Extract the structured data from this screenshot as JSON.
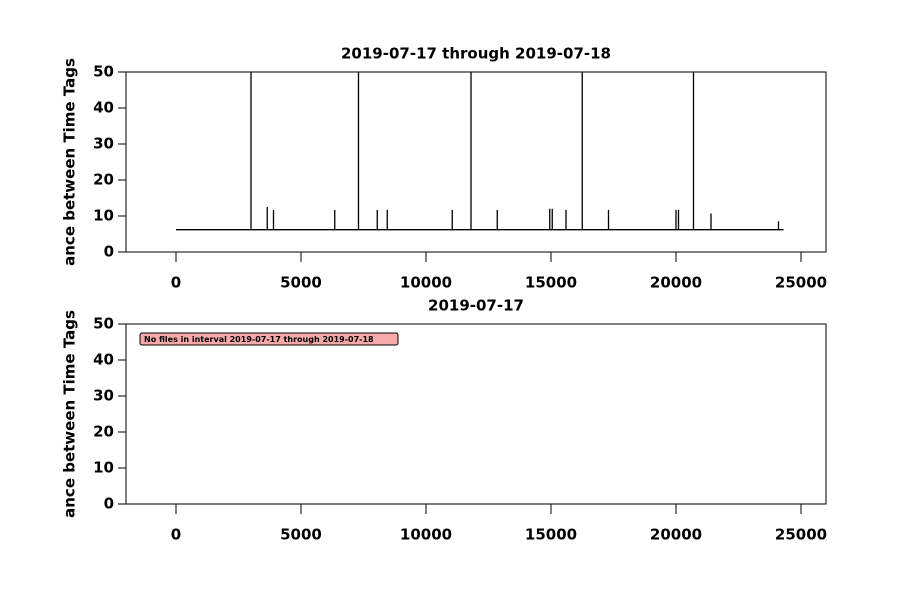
{
  "chart_data": [
    {
      "type": "line",
      "title": "2019-07-17 through 2019-07-18",
      "ylabel": "ance between Time Tags",
      "xlim": [
        -2000,
        26000
      ],
      "xticks": [
        0,
        5000,
        10000,
        15000,
        20000,
        25000
      ],
      "ylim": [
        0,
        50
      ],
      "yticks": [
        0,
        10,
        20,
        30,
        40,
        50
      ],
      "color": "#000000",
      "x": [
        0,
        3000,
        3000,
        3000,
        3650,
        3650,
        3650,
        3900,
        3900,
        3900,
        6350,
        6350,
        6350,
        7300,
        7300,
        7300,
        8050,
        8050,
        8050,
        8450,
        8450,
        8450,
        11050,
        11050,
        11050,
        11800,
        11800,
        11800,
        12850,
        12850,
        12850,
        14950,
        14950,
        14950,
        15050,
        15050,
        15050,
        15600,
        15600,
        15600,
        16250,
        16250,
        16250,
        17300,
        17300,
        17300,
        20000,
        20000,
        20000,
        20100,
        20100,
        20100,
        20700,
        20700,
        20700,
        21400,
        21400,
        21400,
        24100,
        24100,
        24100,
        24300
      ],
      "values": [
        6.2,
        6.2,
        50,
        6.2,
        6.2,
        12.5,
        6.2,
        6.2,
        11.7,
        6.2,
        6.2,
        11.7,
        6.2,
        6.2,
        50,
        6.2,
        6.2,
        11.7,
        6.2,
        6.2,
        11.7,
        6.2,
        6.2,
        11.7,
        6.2,
        6.2,
        50,
        6.2,
        6.2,
        11.7,
        6.2,
        6.2,
        12,
        6.2,
        6.2,
        12,
        6.2,
        6.2,
        11.7,
        6.2,
        6.2,
        50,
        6.2,
        6.2,
        11.7,
        6.2,
        6.2,
        11.7,
        6.2,
        6.2,
        11.7,
        6.2,
        6.2,
        50,
        6.2,
        6.2,
        10.7,
        6.2,
        6.2,
        8.5,
        6.2,
        6.2
      ]
    },
    {
      "type": "line",
      "title": "2019-07-17",
      "ylabel": "ance between Time Tags",
      "xlim": [
        -2000,
        26000
      ],
      "xticks": [
        0,
        5000,
        10000,
        15000,
        20000,
        25000
      ],
      "ylim": [
        0,
        50
      ],
      "yticks": [
        0,
        10,
        20,
        30,
        40,
        50
      ],
      "annotation": "No files in interval 2019-07-17 through 2019-07-18"
    }
  ]
}
